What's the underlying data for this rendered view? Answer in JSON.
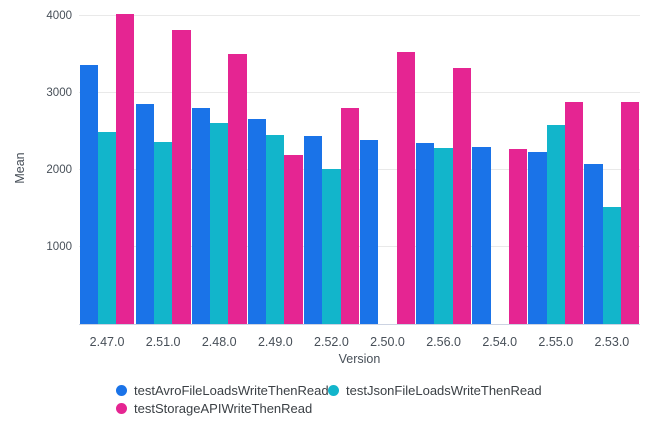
{
  "chart_data": {
    "type": "bar",
    "title": "",
    "xlabel": "Version",
    "ylabel": "Mean",
    "categories": [
      "2.47.0",
      "2.51.0",
      "2.48.0",
      "2.49.0",
      "2.52.0",
      "2.50.0",
      "2.56.0",
      "2.54.0",
      "2.55.0",
      "2.53.0"
    ],
    "series": [
      {
        "name": "testAvroFileLoadsWriteThenRead",
        "color": "#1A73E8",
        "values": [
          3360,
          2860,
          2810,
          2660,
          2440,
          2390,
          2350,
          2300,
          2230,
          2080
        ]
      },
      {
        "name": "testJsonFileLoadsWriteThenRead",
        "color": "#12B5CB",
        "values": [
          2490,
          2360,
          2610,
          2450,
          2010,
          null,
          2290,
          null,
          2590,
          1520
        ]
      },
      {
        "name": "testStorageAPIWriteThenRead",
        "color": "#E52592",
        "values": [
          4030,
          3820,
          3510,
          2190,
          2810,
          3530,
          3320,
          2270,
          2880,
          2880
        ]
      }
    ],
    "y_ticks": [
      1000,
      2000,
      3000,
      4000
    ],
    "ylim": [
      0,
      4080
    ],
    "grid": true,
    "legend_position": "bottom",
    "bar_gap_note": "grouped bars, missing json values at 2.50.0 and 2.54.0 leave empty slots"
  },
  "colors": {
    "series_avro": "#1A73E8",
    "series_json": "#12B5CB",
    "series_storage": "#E52592",
    "gridline": "#e9e9e9",
    "baseline": "#ccd3e2",
    "axis_text": "#474f58",
    "legend_text": "#3b4045",
    "background": "#ffffff"
  }
}
